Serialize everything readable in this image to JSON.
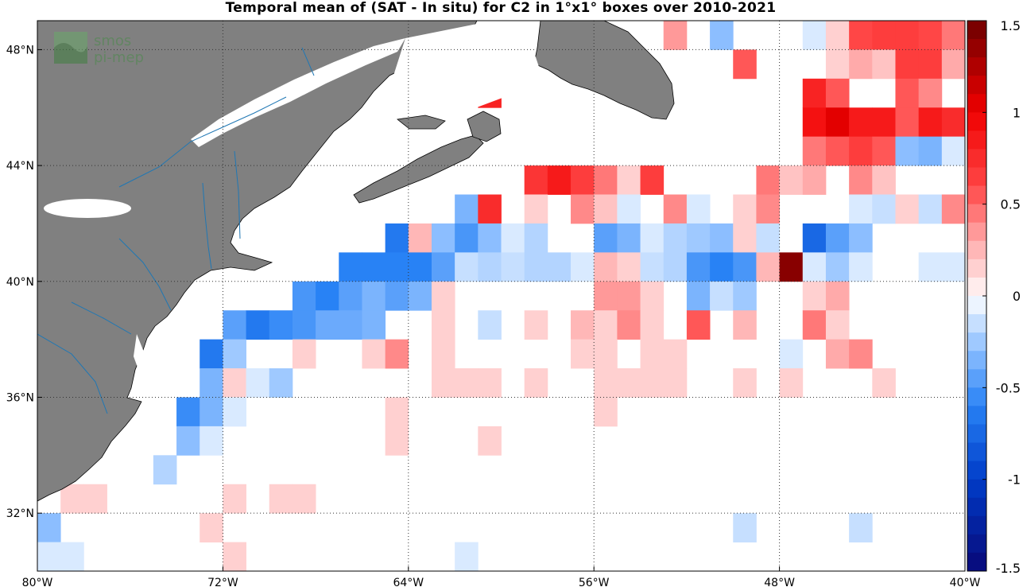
{
  "title": "Temporal mean of (SAT - In situ) for C2 in 1°x1° boxes over 2010-2021",
  "logo": {
    "line1": "smos",
    "line2": "pi-mep"
  },
  "chart_data": {
    "type": "heatmap",
    "cell_size_deg": 1,
    "lon_range": [
      -80,
      -40
    ],
    "lat_range": [
      30,
      49
    ],
    "x_ticks": [
      {
        "value": -80,
        "label": "80°W"
      },
      {
        "value": -72,
        "label": "72°W"
      },
      {
        "value": -64,
        "label": "64°W"
      },
      {
        "value": -56,
        "label": "56°W"
      },
      {
        "value": -48,
        "label": "48°W"
      },
      {
        "value": -40,
        "label": "40°W"
      }
    ],
    "y_ticks": [
      {
        "value": 32,
        "label": "32°N"
      },
      {
        "value": 36,
        "label": "36°N"
      },
      {
        "value": 40,
        "label": "40°N"
      },
      {
        "value": 44,
        "label": "44°N"
      },
      {
        "value": 48,
        "label": "48°N"
      }
    ],
    "colorbar": {
      "range": [
        -1.5,
        1.5
      ],
      "ticks": [
        {
          "value": 1.5,
          "label": "1.5"
        },
        {
          "value": 1,
          "label": "1"
        },
        {
          "value": 0.5,
          "label": "0.5"
        },
        {
          "value": 0,
          "label": "0"
        },
        {
          "value": -0.5,
          "label": "-0.5"
        },
        {
          "value": -1,
          "label": "-1"
        },
        {
          "value": -1.5,
          "label": "-1.5"
        }
      ]
    },
    "grid": true,
    "land_color": "#808080",
    "cells": [
      [
        -53,
        48.5,
        0.35
      ],
      [
        -51,
        48.5,
        -0.3
      ],
      [
        -47,
        48.5,
        -0.1
      ],
      [
        -46,
        48.5,
        0.15
      ],
      [
        -45,
        48.5,
        0.6
      ],
      [
        -44,
        48.5,
        0.65
      ],
      [
        -43,
        48.5,
        0.65
      ],
      [
        -42,
        48.5,
        0.6
      ],
      [
        -41,
        48.5,
        0.45
      ],
      [
        -40,
        48.5,
        -0.1
      ],
      [
        -62,
        47.5,
        0.8
      ],
      [
        -50,
        47.5,
        0.55
      ],
      [
        -46,
        47.5,
        0.15
      ],
      [
        -45,
        47.5,
        0.3
      ],
      [
        -44,
        47.5,
        0.2
      ],
      [
        -43,
        47.5,
        0.65
      ],
      [
        -42,
        47.5,
        0.65
      ],
      [
        -41,
        47.5,
        0.3
      ],
      [
        -61,
        46.5,
        0.8
      ],
      [
        -47,
        46.5,
        0.8
      ],
      [
        -46,
        46.5,
        0.55
      ],
      [
        -43,
        46.5,
        0.55
      ],
      [
        -42,
        46.5,
        0.4
      ],
      [
        -40,
        46.5,
        0.45
      ],
      [
        -47,
        45.5,
        0.9
      ],
      [
        -46,
        45.5,
        1.05
      ],
      [
        -45,
        45.5,
        0.85
      ],
      [
        -44,
        45.5,
        0.85
      ],
      [
        -43,
        45.5,
        0.55
      ],
      [
        -42,
        45.5,
        0.85
      ],
      [
        -41,
        45.5,
        0.75
      ],
      [
        -47,
        44.5,
        0.45
      ],
      [
        -46,
        44.5,
        0.55
      ],
      [
        -45,
        44.5,
        0.65
      ],
      [
        -44,
        44.5,
        0.55
      ],
      [
        -43,
        44.5,
        -0.3
      ],
      [
        -42,
        44.5,
        -0.35
      ],
      [
        -41,
        44.5,
        -0.1
      ],
      [
        -40,
        44.5,
        -0.1
      ],
      [
        -59,
        43.5,
        0.7
      ],
      [
        -58,
        43.5,
        0.85
      ],
      [
        -57,
        43.5,
        0.65
      ],
      [
        -56,
        43.5,
        0.45
      ],
      [
        -55,
        43.5,
        0.15
      ],
      [
        -54,
        43.5,
        0.65
      ],
      [
        -49,
        43.5,
        0.45
      ],
      [
        -48,
        43.5,
        0.2
      ],
      [
        -47,
        43.5,
        0.3
      ],
      [
        -45,
        43.5,
        0.4
      ],
      [
        -44,
        43.5,
        0.2
      ],
      [
        -62,
        42.5,
        -0.35
      ],
      [
        -61,
        42.5,
        0.75
      ],
      [
        -59,
        42.5,
        0.15
      ],
      [
        -57,
        42.5,
        0.4
      ],
      [
        -56,
        42.5,
        0.2
      ],
      [
        -55,
        42.5,
        -0.1
      ],
      [
        -53,
        42.5,
        0.4
      ],
      [
        -52,
        42.5,
        -0.1
      ],
      [
        -50,
        42.5,
        0.15
      ],
      [
        -49,
        42.5,
        0.4
      ],
      [
        -45,
        42.5,
        -0.1
      ],
      [
        -44,
        42.5,
        -0.15
      ],
      [
        -43,
        42.5,
        0.15
      ],
      [
        -42,
        42.5,
        -0.15
      ],
      [
        -41,
        42.5,
        0.4
      ],
      [
        -40,
        42.5,
        0.2
      ],
      [
        -65,
        41.5,
        -0.65
      ],
      [
        -64,
        41.5,
        0.25
      ],
      [
        -63,
        41.5,
        -0.3
      ],
      [
        -62,
        41.5,
        -0.5
      ],
      [
        -61,
        41.5,
        -0.3
      ],
      [
        -60,
        41.5,
        -0.1
      ],
      [
        -59,
        41.5,
        -0.2
      ],
      [
        -56,
        41.5,
        -0.45
      ],
      [
        -55,
        41.5,
        -0.35
      ],
      [
        -54,
        41.5,
        -0.1
      ],
      [
        -53,
        41.5,
        -0.2
      ],
      [
        -52,
        41.5,
        -0.25
      ],
      [
        -51,
        41.5,
        -0.3
      ],
      [
        -50,
        41.5,
        0.15
      ],
      [
        -49,
        41.5,
        -0.15
      ],
      [
        -47,
        41.5,
        -0.75
      ],
      [
        -46,
        41.5,
        -0.45
      ],
      [
        -45,
        41.5,
        -0.3
      ],
      [
        -67,
        40.5,
        -0.6
      ],
      [
        -66,
        40.5,
        -0.6
      ],
      [
        -65,
        40.5,
        -0.6
      ],
      [
        -64,
        40.5,
        -0.6
      ],
      [
        -63,
        40.5,
        -0.45
      ],
      [
        -62,
        40.5,
        -0.15
      ],
      [
        -61,
        40.5,
        -0.2
      ],
      [
        -60,
        40.5,
        -0.15
      ],
      [
        -59,
        40.5,
        -0.2
      ],
      [
        -58,
        40.5,
        -0.2
      ],
      [
        -57,
        40.5,
        -0.1
      ],
      [
        -56,
        40.5,
        0.25
      ],
      [
        -55,
        40.5,
        0.15
      ],
      [
        -54,
        40.5,
        -0.15
      ],
      [
        -53,
        40.5,
        -0.2
      ],
      [
        -52,
        40.5,
        -0.5
      ],
      [
        -51,
        40.5,
        -0.6
      ],
      [
        -50,
        40.5,
        -0.5
      ],
      [
        -49,
        40.5,
        0.25
      ],
      [
        -48,
        40.5,
        1.4
      ],
      [
        -47,
        40.5,
        -0.1
      ],
      [
        -46,
        40.5,
        -0.25
      ],
      [
        -45,
        40.5,
        -0.1
      ],
      [
        -42,
        40.5,
        -0.1
      ],
      [
        -41,
        40.5,
        -0.1
      ],
      [
        -40,
        40.5,
        -0.1
      ],
      [
        -69,
        39.5,
        -0.5
      ],
      [
        -68,
        39.5,
        -0.6
      ],
      [
        -67,
        39.5,
        -0.45
      ],
      [
        -66,
        39.5,
        -0.35
      ],
      [
        -65,
        39.5,
        -0.45
      ],
      [
        -64,
        39.5,
        -0.35
      ],
      [
        -63,
        39.5,
        0.15
      ],
      [
        -56,
        39.5,
        0.35
      ],
      [
        -55,
        39.5,
        0.35
      ],
      [
        -54,
        39.5,
        0.15
      ],
      [
        -52,
        39.5,
        -0.35
      ],
      [
        -51,
        39.5,
        -0.15
      ],
      [
        -50,
        39.5,
        -0.25
      ],
      [
        -47,
        39.5,
        0.15
      ],
      [
        -46,
        39.5,
        0.3
      ],
      [
        -72,
        38.5,
        -0.45
      ],
      [
        -71,
        38.5,
        -0.65
      ],
      [
        -70,
        38.5,
        -0.55
      ],
      [
        -69,
        38.5,
        -0.5
      ],
      [
        -68,
        38.5,
        -0.4
      ],
      [
        -67,
        38.5,
        -0.4
      ],
      [
        -66,
        38.5,
        -0.35
      ],
      [
        -63,
        38.5,
        0.15
      ],
      [
        -61,
        38.5,
        -0.15
      ],
      [
        -59,
        38.5,
        0.15
      ],
      [
        -57,
        38.5,
        0.25
      ],
      [
        -56,
        38.5,
        0.15
      ],
      [
        -55,
        38.5,
        0.4
      ],
      [
        -54,
        38.5,
        0.15
      ],
      [
        -52,
        38.5,
        0.55
      ],
      [
        -50,
        38.5,
        0.25
      ],
      [
        -47,
        38.5,
        0.45
      ],
      [
        -46,
        38.5,
        0.15
      ],
      [
        -73,
        37.5,
        -0.65
      ],
      [
        -72,
        37.5,
        -0.25
      ],
      [
        -69,
        37.5,
        0.15
      ],
      [
        -66,
        37.5,
        0.15
      ],
      [
        -65,
        37.5,
        0.4
      ],
      [
        -63,
        37.5,
        0.15
      ],
      [
        -57,
        37.5,
        0.15
      ],
      [
        -56,
        37.5,
        0.15
      ],
      [
        -54,
        37.5,
        0.15
      ],
      [
        -53,
        37.5,
        0.15
      ],
      [
        -48,
        37.5,
        -0.1
      ],
      [
        -46,
        37.5,
        0.3
      ],
      [
        -45,
        37.5,
        0.4
      ],
      [
        -73,
        36.5,
        -0.35
      ],
      [
        -72,
        36.5,
        0.15
      ],
      [
        -71,
        36.5,
        -0.1
      ],
      [
        -70,
        36.5,
        -0.25
      ],
      [
        -63,
        36.5,
        0.15
      ],
      [
        -62,
        36.5,
        0.15
      ],
      [
        -61,
        36.5,
        0.15
      ],
      [
        -59,
        36.5,
        0.15
      ],
      [
        -56,
        36.5,
        0.15
      ],
      [
        -55,
        36.5,
        0.15
      ],
      [
        -54,
        36.5,
        0.15
      ],
      [
        -53,
        36.5,
        0.15
      ],
      [
        -50,
        36.5,
        0.15
      ],
      [
        -48,
        36.5,
        0.15
      ],
      [
        -44,
        36.5,
        0.15
      ],
      [
        -74,
        35.5,
        -0.55
      ],
      [
        -73,
        35.5,
        -0.35
      ],
      [
        -72,
        35.5,
        -0.1
      ],
      [
        -65,
        35.5,
        0.15
      ],
      [
        -56,
        35.5,
        0.15
      ],
      [
        -74,
        34.5,
        -0.3
      ],
      [
        -73,
        34.5,
        -0.1
      ],
      [
        -65,
        34.5,
        0.15
      ],
      [
        -61,
        34.5,
        0.15
      ],
      [
        -75,
        33.5,
        -0.2
      ],
      [
        -79,
        32.5,
        0.15
      ],
      [
        -78,
        32.5,
        0.15
      ],
      [
        -72,
        32.5,
        0.15
      ],
      [
        -70,
        32.5,
        0.15
      ],
      [
        -69,
        32.5,
        0.15
      ],
      [
        -80,
        31.5,
        -0.3
      ],
      [
        -73,
        31.5,
        0.15
      ],
      [
        -50,
        31.5,
        -0.15
      ],
      [
        -45,
        31.5,
        -0.15
      ],
      [
        -80,
        30.5,
        -0.1
      ],
      [
        -79,
        30.5,
        -0.1
      ],
      [
        -72,
        30.5,
        0.15
      ],
      [
        -62,
        30.5,
        -0.1
      ]
    ]
  }
}
